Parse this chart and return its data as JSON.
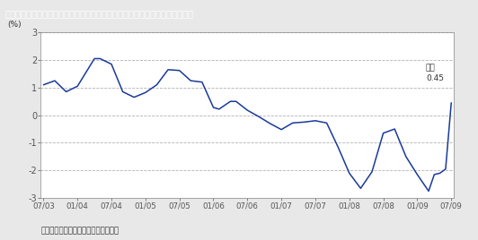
{
  "title": "図表⑫：ケースシラー住宅価格指数（前月比）　～住宅価格２年ぶりで底入れ",
  "title_bg_color": "#3a8a3a",
  "title_text_color": "#ffffff",
  "ylabel": "(%)",
  "source_text": "出所：ブルームバーグ、武者リサーチ",
  "ylim": [
    -3,
    3
  ],
  "yticks": [
    -3,
    -2,
    -1,
    0,
    1,
    2,
    3
  ],
  "annotation_label": "５月\n0.45",
  "line_color": "#1a3a9a",
  "bg_color": "#e8e8e8",
  "plot_bg_color": "#ffffff",
  "x_labels": [
    "07/03",
    "01/04",
    "07/04",
    "01/05",
    "07/05",
    "01/06",
    "07/06",
    "01/07",
    "07/07",
    "01/08",
    "07/08",
    "01/09",
    "07/09"
  ],
  "points": [
    [
      0,
      1.1
    ],
    [
      2,
      1.25
    ],
    [
      4,
      0.85
    ],
    [
      6,
      1.05
    ],
    [
      9,
      2.05
    ],
    [
      10,
      2.05
    ],
    [
      12,
      1.85
    ],
    [
      14,
      0.85
    ],
    [
      16,
      0.65
    ],
    [
      18,
      0.82
    ],
    [
      20,
      1.1
    ],
    [
      22,
      1.65
    ],
    [
      24,
      1.62
    ],
    [
      26,
      1.25
    ],
    [
      28,
      1.2
    ],
    [
      30,
      0.28
    ],
    [
      31,
      0.22
    ],
    [
      33,
      0.5
    ],
    [
      34,
      0.5
    ],
    [
      36,
      0.18
    ],
    [
      38,
      -0.05
    ],
    [
      40,
      -0.3
    ],
    [
      42,
      -0.52
    ],
    [
      44,
      -0.28
    ],
    [
      46,
      -0.25
    ],
    [
      48,
      -0.2
    ],
    [
      50,
      -0.28
    ],
    [
      52,
      -1.15
    ],
    [
      54,
      -2.1
    ],
    [
      56,
      -2.65
    ],
    [
      58,
      -2.05
    ],
    [
      60,
      -0.65
    ],
    [
      62,
      -0.5
    ],
    [
      64,
      -1.5
    ],
    [
      66,
      -2.15
    ],
    [
      68,
      -2.75
    ],
    [
      69,
      -2.15
    ],
    [
      70,
      -2.1
    ],
    [
      71,
      -1.95
    ],
    [
      72,
      0.45
    ]
  ]
}
